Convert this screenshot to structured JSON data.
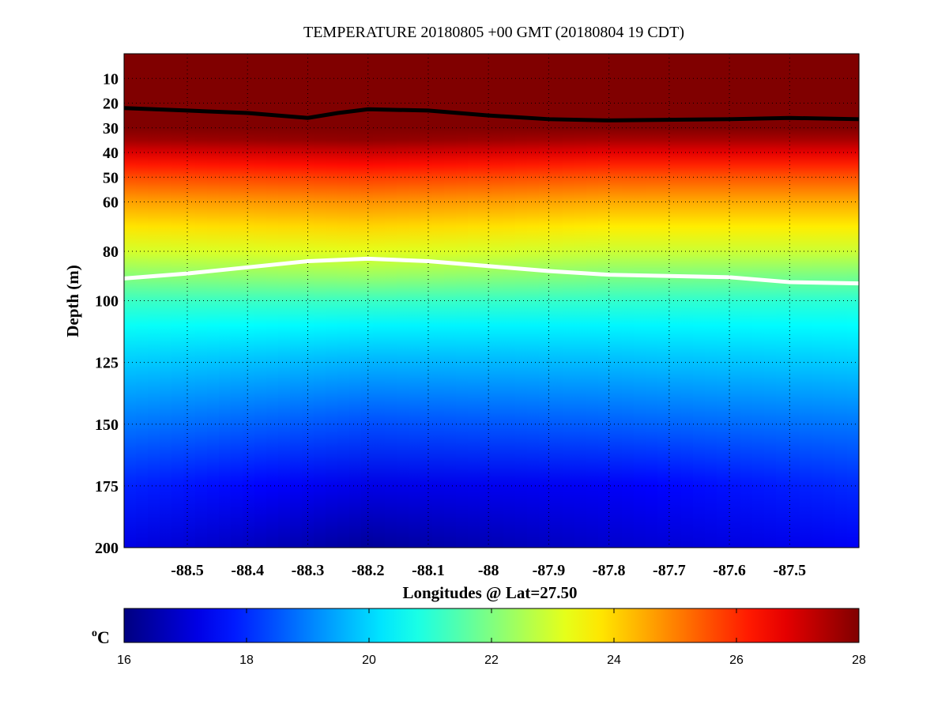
{
  "chart_data": {
    "type": "heatmap",
    "title": "TEMPERATURE 20180805 +00 GMT (20180804 19 CDT)",
    "xlabel": "Longitudes @ Lat=27.50",
    "ylabel": "Depth (m)",
    "xlim": [
      -88.605,
      -87.385
    ],
    "ylim": [
      0,
      200
    ],
    "y_reversed": true,
    "grid": "dotted",
    "xticks": [
      -88.5,
      -88.4,
      -88.3,
      -88.2,
      -88.1,
      -88,
      -87.9,
      -87.8,
      -87.7,
      -87.6,
      -87.5
    ],
    "xtick_labels": [
      "-88.5",
      "-88.4",
      "-88.3",
      "-88.2",
      "-88.1",
      "-88",
      "-87.9",
      "-87.8",
      "-87.7",
      "-87.6",
      "-87.5"
    ],
    "yticks": [
      10,
      20,
      30,
      40,
      50,
      60,
      80,
      100,
      125,
      150,
      175,
      200
    ],
    "ytick_labels": [
      "10",
      "20",
      "30",
      "40",
      "50",
      "60",
      "80",
      "100",
      "125",
      "150",
      "175",
      "200"
    ],
    "depths": [
      0,
      30,
      35,
      40,
      45,
      50,
      55,
      60,
      70,
      80,
      90,
      100,
      110,
      125,
      150,
      175,
      200
    ],
    "profiles": [
      {
        "lon": -88.605,
        "temps": [
          29,
          28.2,
          27.6,
          26.9,
          26.2,
          25.6,
          25.1,
          24.6,
          23.8,
          23.0,
          22.1,
          21.2,
          20.6,
          19.9,
          18.9,
          17.9,
          17.2
        ]
      },
      {
        "lon": -88.2,
        "temps": [
          29,
          28.3,
          27.8,
          27.1,
          26.4,
          25.8,
          25.3,
          24.8,
          24.0,
          23.2,
          22.3,
          21.2,
          20.4,
          19.6,
          18.4,
          17.2,
          16.3
        ]
      },
      {
        "lon": -87.8,
        "temps": [
          29,
          28.1,
          27.5,
          26.8,
          26.1,
          25.5,
          25.0,
          24.5,
          23.7,
          22.9,
          22.0,
          21.1,
          20.4,
          19.7,
          18.6,
          17.4,
          16.9
        ]
      },
      {
        "lon": -87.385,
        "temps": [
          29,
          28.1,
          27.5,
          26.8,
          26.1,
          25.5,
          25.0,
          24.5,
          23.7,
          22.9,
          21.9,
          21.0,
          20.5,
          19.9,
          18.9,
          18.0,
          17.4
        ]
      }
    ],
    "contours": [
      {
        "name": "black-contour",
        "color": "#000000",
        "lon": [
          -88.605,
          -88.5,
          -88.4,
          -88.3,
          -88.25,
          -88.2,
          -88.1,
          -88,
          -87.9,
          -87.8,
          -87.6,
          -87.5,
          -87.385
        ],
        "depth": [
          22,
          23,
          24,
          26,
          24,
          22.5,
          23,
          25,
          26.5,
          27,
          26.5,
          26,
          26.5
        ]
      },
      {
        "name": "white-contour",
        "color": "#ffffff",
        "lon": [
          -88.605,
          -88.5,
          -88.4,
          -88.3,
          -88.2,
          -88.1,
          -88,
          -87.9,
          -87.8,
          -87.6,
          -87.5,
          -87.385
        ],
        "depth": [
          91,
          89,
          86.5,
          84,
          83,
          84,
          86,
          88,
          89.5,
          90.5,
          92.5,
          93
        ]
      }
    ],
    "colorbar": {
      "label": "oC",
      "unit_sup": "o",
      "unit": "C",
      "range": [
        16,
        28
      ],
      "ticks": [
        16,
        18,
        20,
        22,
        24,
        26,
        28
      ],
      "tick_labels": [
        "16",
        "18",
        "20",
        "22",
        "24",
        "26",
        "28"
      ]
    }
  }
}
